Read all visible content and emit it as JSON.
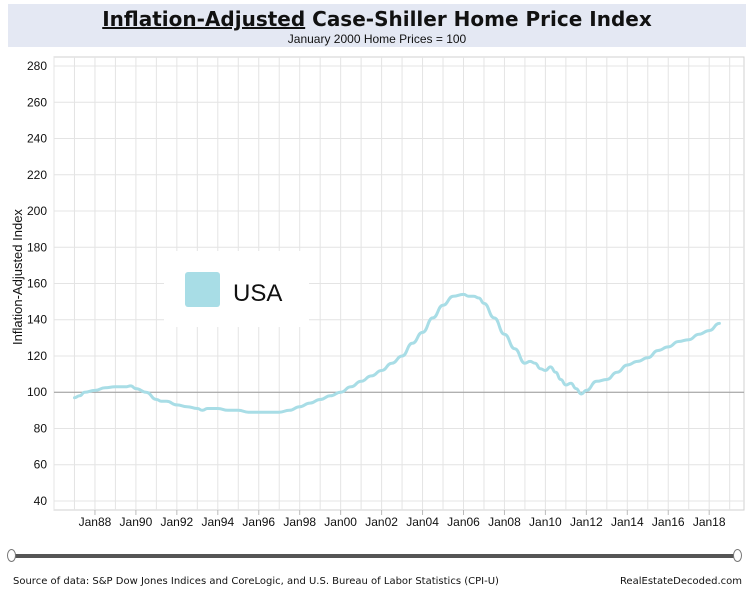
{
  "header": {
    "title_underlined": "Inflation-Adjusted",
    "title_rest": " Case-Shiller Home Price Index",
    "subtitle": "January 2000 Home Prices = 100"
  },
  "footer": {
    "source": "Source of data: S&P Dow Jones Indices and CoreLogic, and U.S. Bureau of Labor Statistics (CPI-U)",
    "brand": "RealEstateDecoded.com"
  },
  "colors": {
    "line": "#a8dde6",
    "baseline": "#9a9a9a",
    "grid": "#e4e4e4",
    "title_band": "#e4e8f3"
  },
  "chart_data": {
    "type": "line",
    "title": "Inflation-Adjusted Case-Shiller Home Price Index",
    "subtitle": "January 2000 Home Prices = 100",
    "xlabel": "",
    "ylabel": "Inflation-Adjusted Index",
    "xlim": [
      1986.0,
      2019.7
    ],
    "ylim": [
      35,
      285
    ],
    "yticks": [
      40,
      60,
      80,
      100,
      120,
      140,
      160,
      180,
      200,
      220,
      240,
      260,
      280
    ],
    "xtick_labels": [
      {
        "label": "Jan88",
        "x": 1988
      },
      {
        "label": "Jan90",
        "x": 1990
      },
      {
        "label": "Jan92",
        "x": 1992
      },
      {
        "label": "Jan94",
        "x": 1994
      },
      {
        "label": "Jan96",
        "x": 1996
      },
      {
        "label": "Jan98",
        "x": 1998
      },
      {
        "label": "Jan00",
        "x": 2000
      },
      {
        "label": "Jan02",
        "x": 2002
      },
      {
        "label": "Jan04",
        "x": 2004
      },
      {
        "label": "Jan06",
        "x": 2006
      },
      {
        "label": "Jan08",
        "x": 2008
      },
      {
        "label": "Jan10",
        "x": 2010
      },
      {
        "label": "Jan12",
        "x": 2012
      },
      {
        "label": "Jan14",
        "x": 2014
      },
      {
        "label": "Jan16",
        "x": 2016
      },
      {
        "label": "Jan18",
        "x": 2018
      }
    ],
    "reference_line": {
      "y": 100
    },
    "grid": true,
    "legend": {
      "position": "left-middle",
      "entries": [
        "USA"
      ]
    },
    "series": [
      {
        "name": "USA",
        "x": [
          1987.0,
          1987.25,
          1987.5,
          1988.0,
          1988.5,
          1989.0,
          1989.5,
          1989.75,
          1990.0,
          1990.5,
          1991.0,
          1991.25,
          1991.5,
          1992.0,
          1992.5,
          1993.0,
          1993.25,
          1993.5,
          1994.0,
          1994.5,
          1995.0,
          1995.5,
          1996.0,
          1996.5,
          1997.0,
          1997.5,
          1998.0,
          1998.5,
          1999.0,
          1999.5,
          2000.0,
          2000.5,
          2001.0,
          2001.5,
          2002.0,
          2002.5,
          2003.0,
          2003.5,
          2004.0,
          2004.5,
          2005.0,
          2005.5,
          2006.0,
          2006.25,
          2006.5,
          2006.75,
          2007.0,
          2007.5,
          2008.0,
          2008.5,
          2009.0,
          2009.25,
          2009.5,
          2009.75,
          2010.0,
          2010.25,
          2010.5,
          2010.75,
          2011.0,
          2011.25,
          2011.5,
          2011.75,
          2012.0,
          2012.5,
          2013.0,
          2013.5,
          2014.0,
          2014.5,
          2015.0,
          2015.5,
          2016.0,
          2016.5,
          2017.0,
          2017.5,
          2018.0,
          2018.5
        ],
        "values": [
          97,
          98,
          100,
          101,
          102.5,
          103,
          103,
          103.5,
          102,
          100,
          96,
          95,
          95,
          93,
          92,
          91,
          90,
          91,
          91,
          90,
          90,
          89,
          89,
          89,
          89,
          90,
          92,
          94,
          96,
          98,
          100,
          103,
          106,
          109,
          112,
          116,
          120,
          127,
          133,
          141,
          148,
          153,
          154,
          153,
          153,
          152,
          149,
          141,
          132,
          124,
          116,
          117,
          116,
          113,
          112,
          114,
          111,
          107,
          104,
          105,
          102,
          99,
          101,
          106,
          107,
          111,
          115,
          117,
          119,
          123,
          125,
          128,
          129,
          132,
          134,
          138
        ]
      }
    ]
  }
}
